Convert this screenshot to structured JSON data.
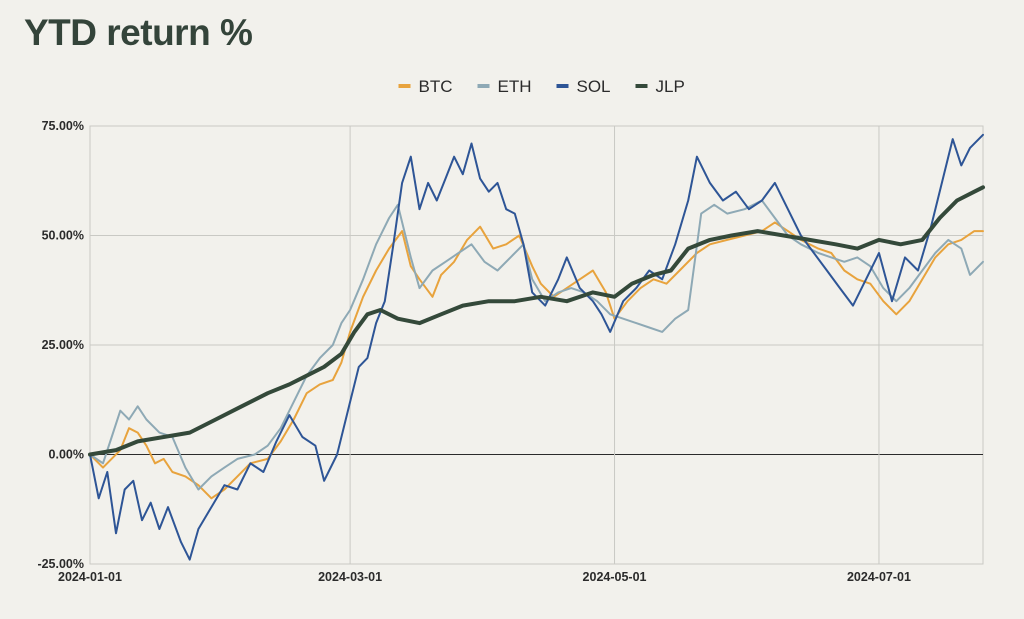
{
  "chart_data": {
    "type": "line",
    "title": "YTD return %",
    "xlabel": "",
    "ylabel": "",
    "ylim": [
      -25,
      75
    ],
    "yticks": [
      75,
      50,
      25,
      0,
      -25
    ],
    "ytick_labels": [
      "75.00%",
      "50.00%",
      "25.00%",
      "0.00%",
      "-25.00%"
    ],
    "xlim": [
      "2024-01-01",
      "2024-07-25"
    ],
    "xticks": [
      "2024-01-01",
      "2024-03-01",
      "2024-05-01",
      "2024-07-01"
    ],
    "grid": true,
    "legend_position": "top-center",
    "series": [
      {
        "name": "BTC",
        "color": "#e8a33d",
        "width": 2,
        "points": [
          [
            "2024-01-01",
            0
          ],
          [
            "2024-01-04",
            -3
          ],
          [
            "2024-01-08",
            1
          ],
          [
            "2024-01-10",
            6
          ],
          [
            "2024-01-12",
            5
          ],
          [
            "2024-01-14",
            2
          ],
          [
            "2024-01-16",
            -2
          ],
          [
            "2024-01-18",
            -1
          ],
          [
            "2024-01-20",
            -4
          ],
          [
            "2024-01-23",
            -5
          ],
          [
            "2024-01-26",
            -7
          ],
          [
            "2024-01-29",
            -10
          ],
          [
            "2024-02-01",
            -8
          ],
          [
            "2024-02-04",
            -5
          ],
          [
            "2024-02-07",
            -2
          ],
          [
            "2024-02-11",
            -1
          ],
          [
            "2024-02-14",
            3
          ],
          [
            "2024-02-17",
            8
          ],
          [
            "2024-02-20",
            14
          ],
          [
            "2024-02-23",
            16
          ],
          [
            "2024-02-26",
            17
          ],
          [
            "2024-02-28",
            21
          ],
          [
            "2024-03-01",
            28
          ],
          [
            "2024-03-04",
            36
          ],
          [
            "2024-03-07",
            42
          ],
          [
            "2024-03-10",
            47
          ],
          [
            "2024-03-13",
            51
          ],
          [
            "2024-03-15",
            43
          ],
          [
            "2024-03-17",
            40
          ],
          [
            "2024-03-20",
            36
          ],
          [
            "2024-03-22",
            41
          ],
          [
            "2024-03-25",
            44
          ],
          [
            "2024-03-28",
            49
          ],
          [
            "2024-03-31",
            52
          ],
          [
            "2024-04-03",
            47
          ],
          [
            "2024-04-06",
            48
          ],
          [
            "2024-04-09",
            50
          ],
          [
            "2024-04-12",
            43
          ],
          [
            "2024-04-14",
            39
          ],
          [
            "2024-04-17",
            36
          ],
          [
            "2024-04-20",
            38
          ],
          [
            "2024-04-23",
            40
          ],
          [
            "2024-04-26",
            42
          ],
          [
            "2024-04-29",
            37
          ],
          [
            "2024-05-01",
            31
          ],
          [
            "2024-05-04",
            35
          ],
          [
            "2024-05-07",
            38
          ],
          [
            "2024-05-10",
            40
          ],
          [
            "2024-05-13",
            39
          ],
          [
            "2024-05-16",
            42
          ],
          [
            "2024-05-20",
            46
          ],
          [
            "2024-05-23",
            48
          ],
          [
            "2024-05-27",
            49
          ],
          [
            "2024-05-31",
            50
          ],
          [
            "2024-06-04",
            51
          ],
          [
            "2024-06-07",
            53
          ],
          [
            "2024-06-10",
            51
          ],
          [
            "2024-06-13",
            49
          ],
          [
            "2024-06-17",
            47
          ],
          [
            "2024-06-20",
            46
          ],
          [
            "2024-06-23",
            42
          ],
          [
            "2024-06-26",
            40
          ],
          [
            "2024-06-29",
            39
          ],
          [
            "2024-07-02",
            35
          ],
          [
            "2024-07-05",
            32
          ],
          [
            "2024-07-08",
            35
          ],
          [
            "2024-07-11",
            40
          ],
          [
            "2024-07-14",
            45
          ],
          [
            "2024-07-17",
            48
          ],
          [
            "2024-07-20",
            49
          ],
          [
            "2024-07-23",
            51
          ],
          [
            "2024-07-25",
            51
          ]
        ]
      },
      {
        "name": "ETH",
        "color": "#8ea9b5",
        "width": 2,
        "points": [
          [
            "2024-01-01",
            0
          ],
          [
            "2024-01-04",
            -2
          ],
          [
            "2024-01-06",
            4
          ],
          [
            "2024-01-08",
            10
          ],
          [
            "2024-01-10",
            8
          ],
          [
            "2024-01-12",
            11
          ],
          [
            "2024-01-14",
            8
          ],
          [
            "2024-01-17",
            5
          ],
          [
            "2024-01-20",
            4
          ],
          [
            "2024-01-23",
            -3
          ],
          [
            "2024-01-26",
            -8
          ],
          [
            "2024-01-29",
            -5
          ],
          [
            "2024-02-01",
            -3
          ],
          [
            "2024-02-04",
            -1
          ],
          [
            "2024-02-08",
            0
          ],
          [
            "2024-02-11",
            2
          ],
          [
            "2024-02-14",
            6
          ],
          [
            "2024-02-17",
            12
          ],
          [
            "2024-02-20",
            18
          ],
          [
            "2024-02-23",
            22
          ],
          [
            "2024-02-26",
            25
          ],
          [
            "2024-02-28",
            30
          ],
          [
            "2024-03-01",
            33
          ],
          [
            "2024-03-04",
            40
          ],
          [
            "2024-03-07",
            48
          ],
          [
            "2024-03-10",
            54
          ],
          [
            "2024-03-12",
            57
          ],
          [
            "2024-03-15",
            45
          ],
          [
            "2024-03-17",
            38
          ],
          [
            "2024-03-20",
            42
          ],
          [
            "2024-03-23",
            44
          ],
          [
            "2024-03-26",
            46
          ],
          [
            "2024-03-29",
            48
          ],
          [
            "2024-04-01",
            44
          ],
          [
            "2024-04-04",
            42
          ],
          [
            "2024-04-07",
            45
          ],
          [
            "2024-04-10",
            48
          ],
          [
            "2024-04-12",
            40
          ],
          [
            "2024-04-15",
            35
          ],
          [
            "2024-04-18",
            37
          ],
          [
            "2024-04-21",
            38
          ],
          [
            "2024-04-24",
            37
          ],
          [
            "2024-04-27",
            35
          ],
          [
            "2024-04-30",
            32
          ],
          [
            "2024-05-03",
            31
          ],
          [
            "2024-05-06",
            30
          ],
          [
            "2024-05-09",
            29
          ],
          [
            "2024-05-12",
            28
          ],
          [
            "2024-05-15",
            31
          ],
          [
            "2024-05-18",
            33
          ],
          [
            "2024-05-21",
            55
          ],
          [
            "2024-05-24",
            57
          ],
          [
            "2024-05-27",
            55
          ],
          [
            "2024-05-31",
            56
          ],
          [
            "2024-06-04",
            58
          ],
          [
            "2024-06-07",
            54
          ],
          [
            "2024-06-10",
            50
          ],
          [
            "2024-06-13",
            48
          ],
          [
            "2024-06-17",
            46
          ],
          [
            "2024-06-20",
            45
          ],
          [
            "2024-06-23",
            44
          ],
          [
            "2024-06-26",
            45
          ],
          [
            "2024-06-29",
            43
          ],
          [
            "2024-07-02",
            38
          ],
          [
            "2024-07-05",
            35
          ],
          [
            "2024-07-08",
            38
          ],
          [
            "2024-07-11",
            42
          ],
          [
            "2024-07-14",
            46
          ],
          [
            "2024-07-17",
            49
          ],
          [
            "2024-07-20",
            47
          ],
          [
            "2024-07-22",
            41
          ],
          [
            "2024-07-25",
            44
          ]
        ]
      },
      {
        "name": "SOL",
        "color": "#2e5596",
        "width": 2,
        "points": [
          [
            "2024-01-01",
            0
          ],
          [
            "2024-01-03",
            -10
          ],
          [
            "2024-01-05",
            -4
          ],
          [
            "2024-01-07",
            -18
          ],
          [
            "2024-01-09",
            -8
          ],
          [
            "2024-01-11",
            -6
          ],
          [
            "2024-01-13",
            -15
          ],
          [
            "2024-01-15",
            -11
          ],
          [
            "2024-01-17",
            -17
          ],
          [
            "2024-01-19",
            -12
          ],
          [
            "2024-01-22",
            -20
          ],
          [
            "2024-01-24",
            -24
          ],
          [
            "2024-01-26",
            -17
          ],
          [
            "2024-01-29",
            -12
          ],
          [
            "2024-02-01",
            -7
          ],
          [
            "2024-02-04",
            -8
          ],
          [
            "2024-02-07",
            -2
          ],
          [
            "2024-02-10",
            -4
          ],
          [
            "2024-02-13",
            3
          ],
          [
            "2024-02-16",
            9
          ],
          [
            "2024-02-19",
            4
          ],
          [
            "2024-02-22",
            2
          ],
          [
            "2024-02-24",
            -6
          ],
          [
            "2024-02-27",
            0
          ],
          [
            "2024-03-01",
            12
          ],
          [
            "2024-03-03",
            20
          ],
          [
            "2024-03-05",
            22
          ],
          [
            "2024-03-07",
            30
          ],
          [
            "2024-03-09",
            35
          ],
          [
            "2024-03-11",
            48
          ],
          [
            "2024-03-13",
            62
          ],
          [
            "2024-03-15",
            68
          ],
          [
            "2024-03-17",
            56
          ],
          [
            "2024-03-19",
            62
          ],
          [
            "2024-03-21",
            58
          ],
          [
            "2024-03-23",
            63
          ],
          [
            "2024-03-25",
            68
          ],
          [
            "2024-03-27",
            64
          ],
          [
            "2024-03-29",
            71
          ],
          [
            "2024-03-31",
            63
          ],
          [
            "2024-04-02",
            60
          ],
          [
            "2024-04-04",
            62
          ],
          [
            "2024-04-06",
            56
          ],
          [
            "2024-04-08",
            55
          ],
          [
            "2024-04-10",
            48
          ],
          [
            "2024-04-12",
            37
          ],
          [
            "2024-04-15",
            34
          ],
          [
            "2024-04-18",
            40
          ],
          [
            "2024-04-20",
            45
          ],
          [
            "2024-04-23",
            38
          ],
          [
            "2024-04-26",
            35
          ],
          [
            "2024-04-28",
            32
          ],
          [
            "2024-04-30",
            28
          ],
          [
            "2024-05-03",
            35
          ],
          [
            "2024-05-06",
            38
          ],
          [
            "2024-05-09",
            42
          ],
          [
            "2024-05-12",
            40
          ],
          [
            "2024-05-15",
            48
          ],
          [
            "2024-05-18",
            58
          ],
          [
            "2024-05-20",
            68
          ],
          [
            "2024-05-23",
            62
          ],
          [
            "2024-05-26",
            58
          ],
          [
            "2024-05-29",
            60
          ],
          [
            "2024-06-01",
            56
          ],
          [
            "2024-06-04",
            58
          ],
          [
            "2024-06-07",
            62
          ],
          [
            "2024-06-10",
            56
          ],
          [
            "2024-06-13",
            50
          ],
          [
            "2024-06-16",
            46
          ],
          [
            "2024-06-19",
            42
          ],
          [
            "2024-06-22",
            38
          ],
          [
            "2024-06-25",
            34
          ],
          [
            "2024-06-28",
            40
          ],
          [
            "2024-07-01",
            46
          ],
          [
            "2024-07-04",
            35
          ],
          [
            "2024-07-07",
            45
          ],
          [
            "2024-07-10",
            42
          ],
          [
            "2024-07-13",
            52
          ],
          [
            "2024-07-16",
            64
          ],
          [
            "2024-07-18",
            72
          ],
          [
            "2024-07-20",
            66
          ],
          [
            "2024-07-22",
            70
          ],
          [
            "2024-07-25",
            73
          ]
        ]
      },
      {
        "name": "JLP",
        "color": "#34493a",
        "width": 4,
        "points": [
          [
            "2024-01-01",
            0
          ],
          [
            "2024-01-07",
            1
          ],
          [
            "2024-01-12",
            3
          ],
          [
            "2024-01-18",
            4
          ],
          [
            "2024-01-24",
            5
          ],
          [
            "2024-01-30",
            8
          ],
          [
            "2024-02-05",
            11
          ],
          [
            "2024-02-11",
            14
          ],
          [
            "2024-02-16",
            16
          ],
          [
            "2024-02-20",
            18
          ],
          [
            "2024-02-24",
            20
          ],
          [
            "2024-02-28",
            23
          ],
          [
            "2024-03-02",
            28
          ],
          [
            "2024-03-05",
            32
          ],
          [
            "2024-03-08",
            33
          ],
          [
            "2024-03-12",
            31
          ],
          [
            "2024-03-17",
            30
          ],
          [
            "2024-03-22",
            32
          ],
          [
            "2024-03-27",
            34
          ],
          [
            "2024-04-02",
            35
          ],
          [
            "2024-04-08",
            35
          ],
          [
            "2024-04-14",
            36
          ],
          [
            "2024-04-20",
            35
          ],
          [
            "2024-04-26",
            37
          ],
          [
            "2024-05-01",
            36
          ],
          [
            "2024-05-05",
            39
          ],
          [
            "2024-05-10",
            41
          ],
          [
            "2024-05-14",
            42
          ],
          [
            "2024-05-18",
            47
          ],
          [
            "2024-05-23",
            49
          ],
          [
            "2024-05-28",
            50
          ],
          [
            "2024-06-03",
            51
          ],
          [
            "2024-06-09",
            50
          ],
          [
            "2024-06-15",
            49
          ],
          [
            "2024-06-21",
            48
          ],
          [
            "2024-06-26",
            47
          ],
          [
            "2024-07-01",
            49
          ],
          [
            "2024-07-06",
            48
          ],
          [
            "2024-07-11",
            49
          ],
          [
            "2024-07-15",
            54
          ],
          [
            "2024-07-19",
            58
          ],
          [
            "2024-07-23",
            60
          ],
          [
            "2024-07-25",
            61
          ]
        ]
      }
    ]
  }
}
